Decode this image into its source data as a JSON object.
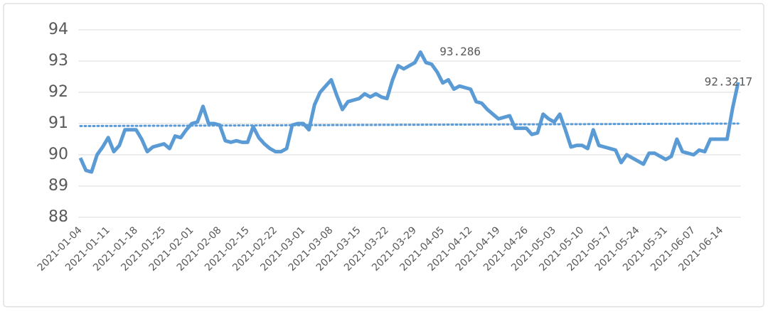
{
  "chart_data": {
    "type": "line",
    "categories": [
      "2021-01-04",
      null,
      null,
      null,
      null,
      "2021-01-11",
      null,
      null,
      null,
      null,
      "2021-01-18",
      null,
      null,
      null,
      null,
      "2021-01-25",
      null,
      null,
      null,
      null,
      "2021-02-01",
      null,
      null,
      null,
      null,
      "2021-02-08",
      null,
      null,
      null,
      null,
      "2021-02-15",
      null,
      null,
      null,
      null,
      "2021-02-22",
      null,
      null,
      null,
      null,
      "2021-03-01",
      null,
      null,
      null,
      null,
      "2021-03-08",
      null,
      null,
      null,
      null,
      "2021-03-15",
      null,
      null,
      null,
      null,
      "2021-03-22",
      null,
      null,
      null,
      null,
      "2021-03-29",
      null,
      null,
      null,
      null,
      "2021-04-05",
      null,
      null,
      null,
      null,
      "2021-04-12",
      null,
      null,
      null,
      null,
      "2021-04-19",
      null,
      null,
      null,
      null,
      "2021-04-26",
      null,
      null,
      null,
      null,
      "2021-05-03",
      null,
      null,
      null,
      null,
      "2021-05-10",
      null,
      null,
      null,
      null,
      "2021-05-17",
      null,
      null,
      null,
      null,
      "2021-05-24",
      null,
      null,
      null,
      null,
      "2021-05-31",
      null,
      null,
      null,
      null,
      "2021-06-07",
      null,
      null,
      null,
      null,
      "2021-06-14",
      null,
      null,
      null
    ],
    "values": [
      89.9,
      89.5,
      89.45,
      90.0,
      90.25,
      90.55,
      90.1,
      90.3,
      90.8,
      90.8,
      90.8,
      90.5,
      90.1,
      90.25,
      90.3,
      90.35,
      90.2,
      90.6,
      90.55,
      90.8,
      91.0,
      91.05,
      91.55,
      91.0,
      91.0,
      90.95,
      90.45,
      90.4,
      90.45,
      90.4,
      90.4,
      90.9,
      90.55,
      90.35,
      90.2,
      90.1,
      90.1,
      90.2,
      90.95,
      91.0,
      91.0,
      90.8,
      91.6,
      92.0,
      92.2,
      92.4,
      91.9,
      91.45,
      91.7,
      91.75,
      91.8,
      91.95,
      91.85,
      91.95,
      91.85,
      91.8,
      92.4,
      92.85,
      92.75,
      92.85,
      92.95,
      93.286,
      92.95,
      92.9,
      92.65,
      92.3,
      92.4,
      92.1,
      92.2,
      92.15,
      92.1,
      91.7,
      91.65,
      91.45,
      91.3,
      91.15,
      91.2,
      91.25,
      90.85,
      90.85,
      90.85,
      90.65,
      90.7,
      91.3,
      91.15,
      91.05,
      91.3,
      90.8,
      90.25,
      90.3,
      90.3,
      90.2,
      90.8,
      90.3,
      90.25,
      90.2,
      90.15,
      89.75,
      90.0,
      89.9,
      89.8,
      89.7,
      90.05,
      90.05,
      89.95,
      89.85,
      89.95,
      90.5,
      90.1,
      90.05,
      90.0,
      90.15,
      90.1,
      90.5,
      90.5,
      90.5,
      90.5,
      91.5,
      92.3217
    ],
    "value_labels": [
      null,
      null,
      null,
      null,
      null,
      null,
      null,
      null,
      null,
      null,
      null,
      null,
      null,
      null,
      null,
      null,
      null,
      null,
      null,
      null,
      null,
      null,
      null,
      null,
      null,
      null,
      null,
      null,
      null,
      null,
      null,
      null,
      null,
      null,
      null,
      null,
      null,
      null,
      null,
      null,
      null,
      null,
      null,
      null,
      null,
      null,
      null,
      null,
      null,
      null,
      null,
      null,
      null,
      null,
      null,
      null,
      null,
      null,
      null,
      null,
      null,
      "93.286",
      null,
      null,
      null,
      null,
      null,
      null,
      null,
      null,
      null,
      null,
      null,
      null,
      null,
      null,
      null,
      null,
      null,
      null,
      null,
      null,
      null,
      null,
      null,
      null,
      null,
      null,
      null,
      null,
      null,
      null,
      null,
      null,
      null,
      null,
      null,
      null,
      null,
      null,
      null,
      null,
      null,
      null,
      null,
      null,
      null,
      null,
      null,
      null,
      null,
      null,
      null,
      null,
      null,
      null,
      null,
      null,
      "92.3217"
    ],
    "color": "#5b9bd5",
    "trend_line": [
      90.92,
      91.0
    ],
    "ylim": [
      88,
      94
    ],
    "yticks": [
      88,
      89,
      90,
      91,
      92,
      93,
      94
    ],
    "grid": true
  }
}
